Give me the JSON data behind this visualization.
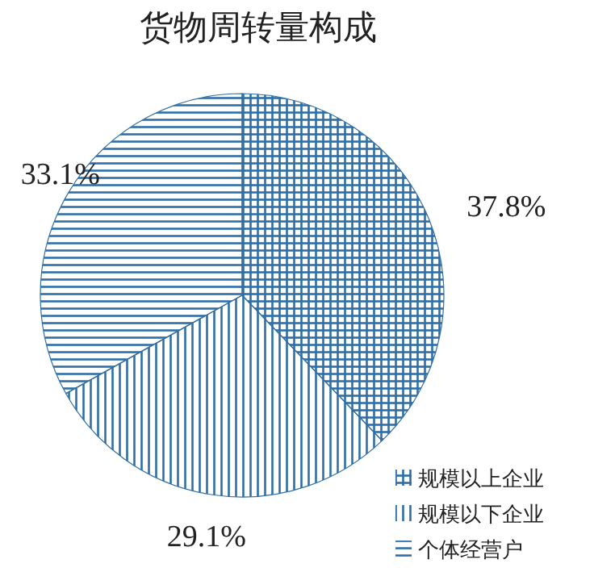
{
  "chart_data": {
    "type": "pie",
    "title": "货物周转量构成",
    "categories": [
      "规模以上企业",
      "规模以下企业",
      "个体经营户"
    ],
    "values": [
      37.8,
      29.1,
      33.1
    ],
    "colors": [
      "#2f6ea6",
      "#2f6ea6",
      "#2f6ea6"
    ],
    "value_labels": [
      "37.8%",
      "29.1%",
      "33.1%"
    ],
    "legend": "bottom right"
  }
}
